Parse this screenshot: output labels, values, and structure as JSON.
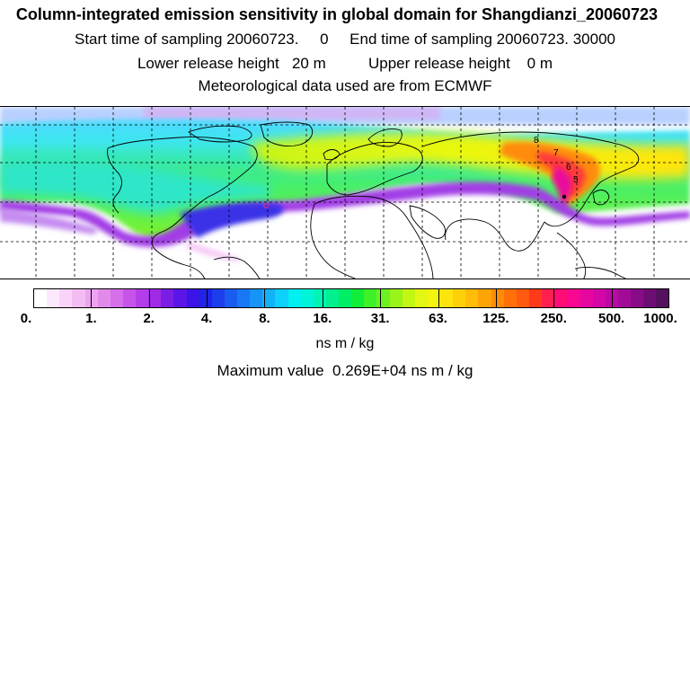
{
  "header": {
    "title": "Column-integrated emission sensitivity in global domain for Shangdianzi_20060723",
    "sampling_line": "Start time of sampling 20060723.     0     End time of sampling 20060723. 30000",
    "release_line": "Lower release height   20 m          Upper release height    0 m",
    "meteo_line": "Meteorological data used are from ECMWF"
  },
  "map": {
    "receptor_location": "Shangdianzi",
    "projection": "equirectangular",
    "grid": "dashed",
    "plume_numeral_labels": [
      "8",
      "7",
      "6",
      "5"
    ]
  },
  "colorbar": {
    "tick_labels": [
      "0.",
      "1.",
      "2.",
      "4.",
      "8.",
      "16.",
      "31.",
      "63.",
      "125.",
      "250.",
      "500.",
      "1000."
    ],
    "units": "ns m / kg",
    "colors": [
      "#ffffff",
      "#fde9fd",
      "#f9d3f9",
      "#f3bdf4",
      "#eca4f0",
      "#e28aec",
      "#d56fea",
      "#c654ea",
      "#b53ce9",
      "#a02ae6",
      "#7a1ee6",
      "#5a16e6",
      "#3a14e6",
      "#2024e8",
      "#1c3eec",
      "#1a5cf0",
      "#1878f4",
      "#1694f8",
      "#12b2fb",
      "#0ed0fd",
      "#00f0f2",
      "#00f4d8",
      "#00f4b6",
      "#00f08e",
      "#00ee64",
      "#10ee3a",
      "#3ef028",
      "#6cf220",
      "#98f41a",
      "#c4f614",
      "#e2f812",
      "#f4f40e",
      "#fce40c",
      "#fed00a",
      "#ffbc08",
      "#ffa406",
      "#ff8c06",
      "#ff7008",
      "#ff5a10",
      "#ff3a1a",
      "#ff2050",
      "#ff0c74",
      "#f80890",
      "#e806a0",
      "#d406a8",
      "#bc08a4",
      "#a20a98",
      "#880c88",
      "#6e0e74",
      "#561060"
    ],
    "levels": [
      0,
      1,
      2,
      4,
      8,
      16,
      31,
      63,
      125,
      250,
      500,
      1000
    ]
  },
  "footer": {
    "maximum_value": "Maximum value  0.269E+04 ns m / kg"
  }
}
